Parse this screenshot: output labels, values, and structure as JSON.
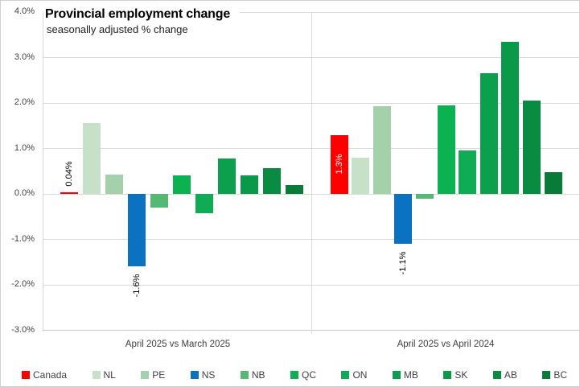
{
  "chart_data": {
    "type": "bar",
    "title": "Provincial employment change",
    "subtitle": "seasonally adjusted % change",
    "ylim": [
      -3.0,
      4.0
    ],
    "ytick_step": 1.0,
    "grid": true,
    "legend_position": "bottom",
    "yticks": [
      {
        "label": "4.0%",
        "value": 4
      },
      {
        "label": "3.0%",
        "value": 3
      },
      {
        "label": "2.0%",
        "value": 2
      },
      {
        "label": "1.0%",
        "value": 1
      },
      {
        "label": "0.0%",
        "value": 0
      },
      {
        "label": "-1.0%",
        "value": -1
      },
      {
        "label": "-2.0%",
        "value": -2
      },
      {
        "label": "-3.0%",
        "value": -3
      }
    ],
    "series_labels": [
      "Canada",
      "NL",
      "PE",
      "NS",
      "NB",
      "QC",
      "ON",
      "MB",
      "SK",
      "AB",
      "BC"
    ],
    "series_colors": [
      "#ff0000",
      "#c7e0c8",
      "#a5d1aa",
      "#0b72c1",
      "#55b873",
      "#0cb152",
      "#10ab55",
      "#0ca04e",
      "#0a9849",
      "#098b41",
      "#087b38"
    ],
    "groups": [
      {
        "label": "April 2025 vs March 2025",
        "values": [
          0.04,
          1.55,
          0.42,
          -1.6,
          -0.3,
          0.4,
          -0.42,
          0.78,
          0.4,
          0.57,
          0.2
        ]
      },
      {
        "label": "April 2025 vs April 2024",
        "values": [
          1.3,
          0.8,
          1.93,
          -1.1,
          -0.1,
          1.95,
          0.95,
          2.65,
          3.35,
          2.05,
          0.48
        ]
      }
    ],
    "annotations": [
      {
        "group": 0,
        "bar": 0,
        "text": "0.04%",
        "placement": "above",
        "color": "#000000"
      },
      {
        "group": 0,
        "bar": 3,
        "text": "-1.6%",
        "placement": "below",
        "color": "#000000"
      },
      {
        "group": 1,
        "bar": 0,
        "text": "1.3%",
        "placement": "inside",
        "color": "#ffffff"
      },
      {
        "group": 1,
        "bar": 3,
        "text": "-1.1%",
        "placement": "below",
        "color": "#000000"
      }
    ]
  }
}
